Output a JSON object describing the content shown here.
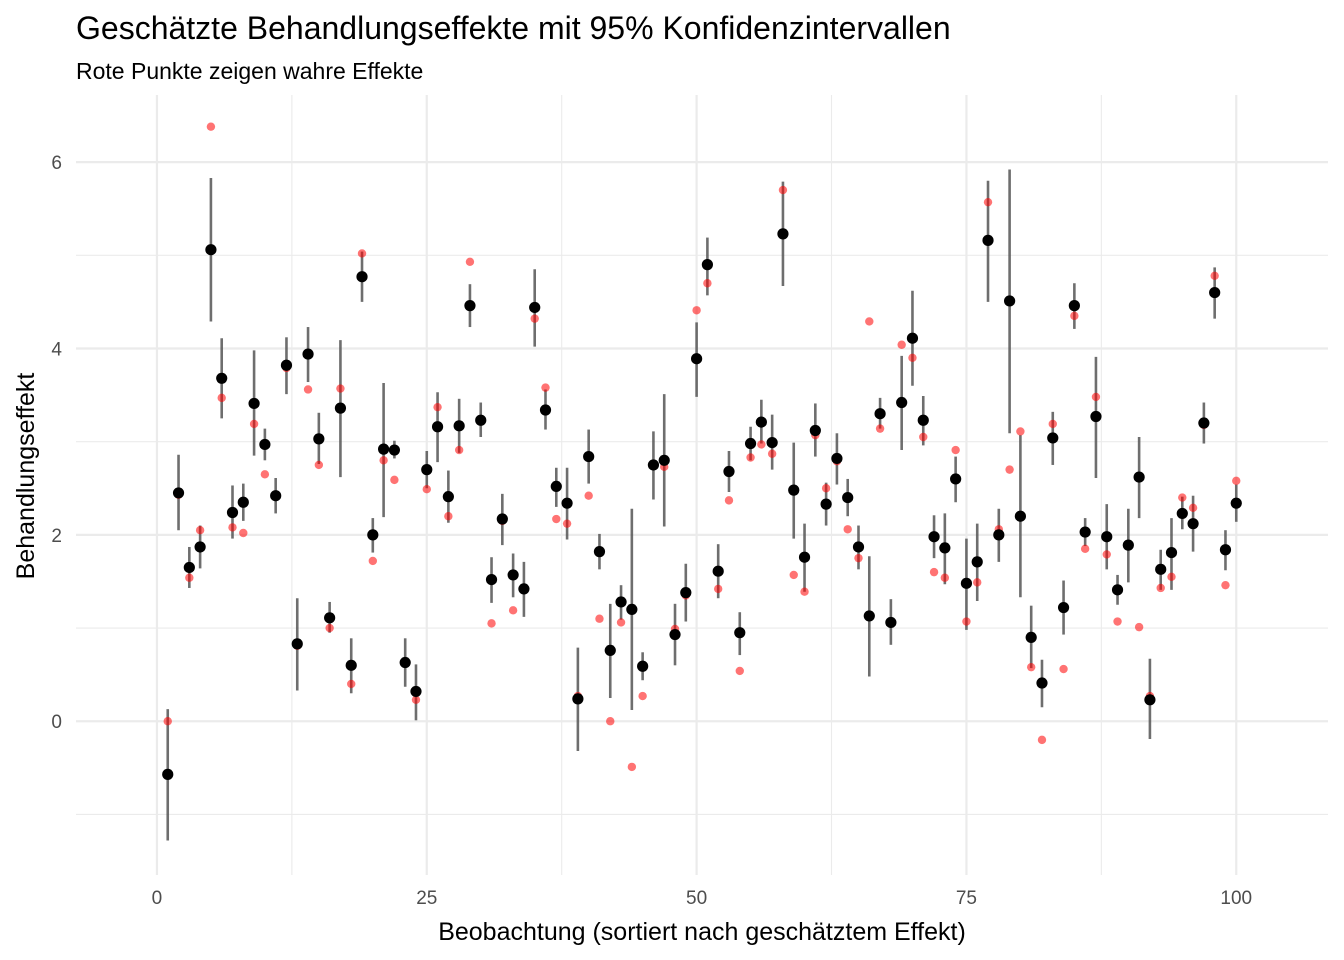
{
  "chart_data": {
    "type": "scatter",
    "title": "Geschätzte Behandlungseffekte mit 95% Konfidenzintervallen",
    "subtitle": "Rote Punkte zeigen wahre Effekte",
    "xlabel": "Beobachtung (sortiert nach geschätztem Effekt)",
    "ylabel": "Behandlungseffekt",
    "xlim": [
      -7.5,
      108.5
    ],
    "ylim": [
      -1.65,
      6.72
    ],
    "x_ticks": [
      0,
      25,
      50,
      75,
      100
    ],
    "x_tick_labels": [
      "0",
      "25",
      "50",
      "75",
      "100"
    ],
    "y_ticks": [
      0,
      2,
      4,
      6
    ],
    "y_tick_labels": [
      "0",
      "2",
      "4",
      "6"
    ],
    "grid": true,
    "legend": "none",
    "colors": {
      "estimate": "#000000",
      "true_effect": "#ff0000",
      "interval": "#555555",
      "grid": "#ebebeb"
    },
    "series": [
      {
        "kind": "estimate_with_ci",
        "x": [
          1,
          2,
          3,
          4,
          5,
          6,
          7,
          8,
          9,
          10,
          11,
          12,
          13,
          14,
          15,
          16,
          17,
          18,
          19,
          20,
          21,
          22,
          23,
          24,
          25,
          26,
          27,
          28,
          29,
          30,
          31,
          32,
          33,
          34,
          35,
          36,
          37,
          38,
          39,
          40,
          41,
          42,
          43,
          44,
          45,
          46,
          47,
          48,
          49,
          50,
          51,
          52,
          53,
          54,
          55,
          56,
          57,
          58,
          59,
          60,
          61,
          62,
          63,
          64,
          65,
          66,
          67,
          68,
          69,
          70,
          71,
          72,
          73,
          74,
          75,
          76,
          77,
          78,
          79,
          80,
          81,
          82,
          83,
          84,
          85,
          86,
          87,
          88,
          89,
          90,
          91,
          92,
          93,
          94,
          95,
          96,
          97,
          98,
          99,
          100
        ],
        "estimate": [
          -0.57,
          2.45,
          1.65,
          1.87,
          5.06,
          3.68,
          2.24,
          2.35,
          3.41,
          2.97,
          2.42,
          3.82,
          0.83,
          3.94,
          3.03,
          1.11,
          3.36,
          0.6,
          4.77,
          2.0,
          2.92,
          2.91,
          0.63,
          0.32,
          2.7,
          3.16,
          2.41,
          3.17,
          4.46,
          3.23,
          1.52,
          2.17,
          1.57,
          1.42,
          4.44,
          3.34,
          2.52,
          2.34,
          0.24,
          2.84,
          1.82,
          0.76,
          1.28,
          1.2,
          0.59,
          2.75,
          2.8,
          0.93,
          1.38,
          3.89,
          4.9,
          1.61,
          2.68,
          0.95,
          2.98,
          3.21,
          2.99,
          5.23,
          2.48,
          1.76,
          3.12,
          2.33,
          2.82,
          2.4,
          1.87,
          1.13,
          3.3,
          1.06,
          3.42,
          4.11,
          3.23,
          1.98,
          1.86,
          2.6,
          1.48,
          1.71,
          5.16,
          2.0,
          4.51,
          2.2,
          0.9,
          0.41,
          3.04,
          1.22,
          4.46,
          2.03,
          3.27,
          1.98,
          1.41,
          1.89,
          2.62,
          0.23,
          1.63,
          1.81,
          2.23,
          2.12,
          3.2,
          4.6,
          1.84,
          2.34
        ],
        "ci_low": [
          -1.28,
          2.05,
          1.43,
          1.64,
          4.29,
          3.25,
          1.96,
          2.15,
          2.85,
          2.8,
          2.23,
          3.51,
          0.33,
          3.64,
          2.76,
          0.95,
          2.62,
          0.3,
          4.5,
          1.81,
          2.19,
          2.82,
          0.37,
          0.01,
          2.5,
          2.78,
          2.13,
          2.88,
          4.23,
          3.05,
          1.27,
          1.89,
          1.33,
          1.12,
          4.02,
          3.13,
          2.3,
          1.95,
          -0.32,
          2.55,
          1.63,
          0.25,
          1.09,
          0.12,
          0.44,
          2.38,
          2.09,
          0.6,
          1.07,
          3.48,
          4.57,
          1.32,
          2.46,
          0.71,
          2.8,
          2.98,
          2.7,
          4.67,
          1.96,
          1.39,
          2.84,
          2.1,
          2.54,
          2.2,
          1.63,
          0.48,
          3.14,
          0.82,
          2.91,
          3.6,
          2.96,
          1.75,
          1.47,
          2.35,
          0.98,
          1.29,
          4.5,
          1.71,
          3.09,
          1.33,
          0.57,
          0.15,
          2.75,
          0.93,
          4.21,
          1.88,
          2.61,
          1.63,
          1.25,
          1.49,
          2.18,
          -0.19,
          1.41,
          1.41,
          2.06,
          1.82,
          2.98,
          4.32,
          1.62,
          2.14
        ],
        "ci_high": [
          0.13,
          2.86,
          1.87,
          2.1,
          5.83,
          4.11,
          2.53,
          2.55,
          3.98,
          3.14,
          2.61,
          4.12,
          1.32,
          4.23,
          3.31,
          1.28,
          4.09,
          0.89,
          5.04,
          2.18,
          3.63,
          3.01,
          0.89,
          0.61,
          2.9,
          3.53,
          2.69,
          3.46,
          4.69,
          3.42,
          1.76,
          2.44,
          1.8,
          1.71,
          4.85,
          3.56,
          2.72,
          2.72,
          0.79,
          3.13,
          2.01,
          1.26,
          1.46,
          2.28,
          0.74,
          3.11,
          3.51,
          1.26,
          1.69,
          4.28,
          5.19,
          1.9,
          2.9,
          1.17,
          3.16,
          3.45,
          3.29,
          5.79,
          2.99,
          2.12,
          3.41,
          2.56,
          3.09,
          2.6,
          2.1,
          1.77,
          3.47,
          1.31,
          3.92,
          4.62,
          3.49,
          2.21,
          2.23,
          2.84,
          1.96,
          2.12,
          5.8,
          2.28,
          5.92,
          3.07,
          1.24,
          0.66,
          3.32,
          1.51,
          4.7,
          2.18,
          3.91,
          2.33,
          1.57,
          2.28,
          3.05,
          0.67,
          1.84,
          2.18,
          2.41,
          2.42,
          3.42,
          4.87,
          2.05,
          2.54
        ]
      },
      {
        "kind": "true_effect",
        "x": [
          1,
          2,
          3,
          4,
          5,
          6,
          7,
          8,
          9,
          10,
          11,
          12,
          13,
          14,
          15,
          16,
          17,
          18,
          19,
          20,
          21,
          22,
          23,
          24,
          25,
          26,
          27,
          28,
          29,
          30,
          31,
          32,
          33,
          34,
          35,
          36,
          37,
          38,
          39,
          40,
          41,
          42,
          43,
          44,
          45,
          46,
          47,
          48,
          49,
          50,
          51,
          52,
          53,
          54,
          55,
          56,
          57,
          58,
          59,
          60,
          61,
          62,
          63,
          64,
          65,
          66,
          67,
          68,
          69,
          70,
          71,
          72,
          73,
          74,
          75,
          76,
          77,
          78,
          79,
          80,
          81,
          82,
          83,
          84,
          85,
          86,
          87,
          88,
          89,
          90,
          91,
          92,
          93,
          94,
          95,
          96,
          97,
          98,
          99,
          100
        ],
        "values": [
          0.0,
          2.43,
          1.54,
          2.05,
          6.38,
          3.47,
          2.08,
          2.02,
          3.19,
          2.65,
          2.43,
          3.79,
          0.81,
          3.56,
          2.75,
          1.0,
          3.57,
          0.4,
          5.02,
          1.72,
          2.8,
          2.59,
          0.62,
          0.23,
          2.49,
          3.37,
          2.2,
          2.91,
          4.93,
          3.24,
          1.05,
          2.15,
          1.19,
          1.43,
          4.32,
          3.58,
          2.17,
          2.12,
          0.27,
          2.42,
          1.1,
          0.0,
          1.06,
          -0.49,
          0.27,
          2.76,
          2.73,
          0.99,
          1.35,
          4.41,
          4.7,
          1.42,
          2.37,
          0.54,
          2.83,
          2.97,
          2.87,
          5.7,
          1.57,
          1.39,
          3.07,
          2.5,
          2.79,
          2.06,
          1.75,
          4.29,
          3.14,
          1.05,
          4.04,
          3.9,
          3.05,
          1.6,
          1.54,
          2.91,
          1.07,
          1.49,
          5.57,
          2.06,
          2.7,
          3.11,
          0.58,
          -0.2,
          3.19,
          0.56,
          4.35,
          1.85,
          3.48,
          1.79,
          1.07,
          1.88,
          1.01,
          0.27,
          1.43,
          1.55,
          2.4,
          2.29,
          3.18,
          4.78,
          1.46,
          2.58
        ]
      }
    ]
  }
}
